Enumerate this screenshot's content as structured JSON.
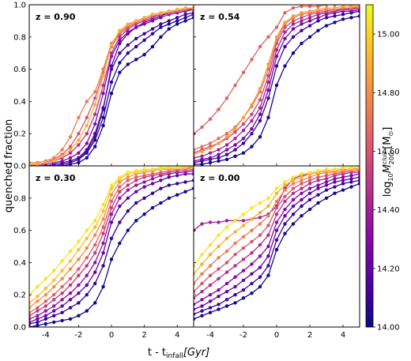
{
  "figure": {
    "ylabel": "quenched fraction",
    "xlabel_main": "t - t",
    "xlabel_sub": "infall",
    "xlabel_unit": "[Gyr]",
    "colorbar_label_prefix": "log",
    "colorbar_label_sub10": "10",
    "colorbar_label_M": "M",
    "colorbar_label_sup": "clus",
    "colorbar_label_sub200": "200",
    "colorbar_label_unit": " [M",
    "colorbar_label_unit_end": "]",
    "colorbar_label_sun": "⊙"
  },
  "colorbar": {
    "colormap": "plasma",
    "range": [
      14.0,
      15.1
    ],
    "ticks": [
      "14.00",
      "14.20",
      "14.40",
      "14.60",
      "14.80",
      "15.00"
    ],
    "tick_values": [
      14.0,
      14.2,
      14.4,
      14.6,
      14.8,
      15.0
    ]
  },
  "chart_data": [
    {
      "type": "line",
      "panel": "top-left",
      "label": "z = 0.90",
      "xlim": [
        -5,
        5
      ],
      "ylim": [
        0,
        1
      ],
      "xticks": [
        "-4",
        "-2",
        "0",
        "2",
        "4"
      ],
      "yticks": [
        "0.0",
        "0.2",
        "0.4",
        "0.6",
        "0.8",
        "1.0"
      ],
      "x": [
        -5,
        -4.5,
        -4,
        -3.5,
        -3,
        -2.5,
        -2,
        -1.5,
        -1,
        -0.5,
        0,
        0.5,
        1,
        1.5,
        2,
        2.5,
        3,
        3.5,
        4,
        4.5,
        5
      ],
      "series": [
        {
          "mass": 14.02,
          "values": [
            0.0,
            0.0,
            0.0,
            0.0,
            0.0,
            0.01,
            0.02,
            0.05,
            0.12,
            0.25,
            0.45,
            0.58,
            0.63,
            0.66,
            0.69,
            0.74,
            0.8,
            0.85,
            0.88,
            0.9,
            0.92
          ]
        },
        {
          "mass": 14.05,
          "values": [
            0.0,
            0.0,
            0.0,
            0.0,
            0.01,
            0.02,
            0.04,
            0.08,
            0.16,
            0.3,
            0.52,
            0.64,
            0.7,
            0.74,
            0.78,
            0.82,
            0.86,
            0.88,
            0.9,
            0.92,
            0.94
          ]
        },
        {
          "mass": 14.1,
          "values": [
            0.0,
            0.0,
            0.0,
            0.01,
            0.02,
            0.03,
            0.05,
            0.1,
            0.2,
            0.36,
            0.6,
            0.7,
            0.75,
            0.79,
            0.82,
            0.85,
            0.88,
            0.9,
            0.92,
            0.94,
            0.95
          ]
        },
        {
          "mass": 14.15,
          "values": [
            0.0,
            0.0,
            0.0,
            0.0,
            0.01,
            0.02,
            0.04,
            0.09,
            0.18,
            0.35,
            0.62,
            0.76,
            0.82,
            0.86,
            0.89,
            0.91,
            0.93,
            0.95,
            0.96,
            0.97,
            0.98
          ]
        },
        {
          "mass": 14.3,
          "values": [
            0.01,
            0.01,
            0.01,
            0.02,
            0.03,
            0.05,
            0.08,
            0.14,
            0.26,
            0.45,
            0.68,
            0.78,
            0.83,
            0.86,
            0.88,
            0.9,
            0.92,
            0.94,
            0.95,
            0.96,
            0.97
          ]
        },
        {
          "mass": 14.45,
          "values": [
            0.01,
            0.01,
            0.02,
            0.03,
            0.05,
            0.08,
            0.13,
            0.2,
            0.32,
            0.5,
            0.7,
            0.8,
            0.85,
            0.88,
            0.9,
            0.92,
            0.94,
            0.95,
            0.96,
            0.97,
            0.97
          ]
        },
        {
          "mass": 14.6,
          "values": [
            0.01,
            0.01,
            0.02,
            0.04,
            0.07,
            0.12,
            0.2,
            0.3,
            0.42,
            0.58,
            0.74,
            0.82,
            0.86,
            0.89,
            0.91,
            0.93,
            0.94,
            0.95,
            0.96,
            0.97,
            0.98
          ]
        },
        {
          "mass": 14.75,
          "values": [
            0.02,
            0.02,
            0.03,
            0.05,
            0.1,
            0.18,
            0.3,
            0.4,
            0.46,
            0.6,
            0.76,
            0.83,
            0.87,
            0.9,
            0.92,
            0.94,
            0.95,
            0.96,
            0.97,
            0.98,
            0.98
          ]
        },
        {
          "mass": 14.9,
          "values": [
            0.01,
            0.01,
            0.02,
            0.03,
            0.06,
            0.1,
            0.16,
            0.25,
            0.38,
            0.56,
            0.75,
            0.84,
            0.88,
            0.9,
            0.92,
            0.94,
            0.95,
            0.96,
            0.97,
            0.98,
            0.98
          ]
        }
      ]
    },
    {
      "type": "line",
      "panel": "top-right",
      "label": "z = 0.54",
      "xlim": [
        -5,
        5
      ],
      "ylim": [
        0,
        1
      ],
      "xticks": [
        "-4",
        "-2",
        "0",
        "2",
        "4"
      ],
      "yticks": [
        "0.0",
        "0.2",
        "0.4",
        "0.6",
        "0.8",
        "1.0"
      ],
      "x": [
        -5,
        -4.5,
        -4,
        -3.5,
        -3,
        -2.5,
        -2,
        -1.5,
        -1,
        -0.5,
        0,
        0.5,
        1,
        1.5,
        2,
        2.5,
        3,
        3.5,
        4,
        4.5,
        5
      ],
      "series": [
        {
          "mass": 14.02,
          "values": [
            0.01,
            0.01,
            0.02,
            0.03,
            0.04,
            0.06,
            0.08,
            0.12,
            0.18,
            0.3,
            0.5,
            0.62,
            0.7,
            0.76,
            0.8,
            0.84,
            0.87,
            0.89,
            0.91,
            0.92,
            0.93
          ]
        },
        {
          "mass": 14.1,
          "values": [
            0.02,
            0.03,
            0.04,
            0.05,
            0.07,
            0.1,
            0.14,
            0.2,
            0.28,
            0.42,
            0.62,
            0.74,
            0.8,
            0.84,
            0.87,
            0.9,
            0.92,
            0.93,
            0.94,
            0.95,
            0.96
          ]
        },
        {
          "mass": 14.25,
          "values": [
            0.03,
            0.04,
            0.05,
            0.07,
            0.1,
            0.13,
            0.17,
            0.23,
            0.32,
            0.47,
            0.68,
            0.79,
            0.85,
            0.88,
            0.9,
            0.92,
            0.94,
            0.95,
            0.96,
            0.96,
            0.97
          ]
        },
        {
          "mass": 14.4,
          "values": [
            0.05,
            0.06,
            0.08,
            0.1,
            0.13,
            0.17,
            0.22,
            0.28,
            0.36,
            0.52,
            0.72,
            0.83,
            0.88,
            0.9,
            0.92,
            0.94,
            0.95,
            0.96,
            0.97,
            0.97,
            0.98
          ]
        },
        {
          "mass": 14.55,
          "values": [
            0.08,
            0.1,
            0.12,
            0.14,
            0.17,
            0.21,
            0.26,
            0.32,
            0.41,
            0.56,
            0.76,
            0.86,
            0.9,
            0.92,
            0.94,
            0.95,
            0.96,
            0.97,
            0.97,
            0.98,
            0.98
          ]
        },
        {
          "mass": 14.7,
          "values": [
            0.1,
            0.12,
            0.14,
            0.17,
            0.2,
            0.24,
            0.3,
            0.37,
            0.46,
            0.6,
            0.78,
            0.88,
            0.92,
            0.94,
            0.95,
            0.96,
            0.97,
            0.97,
            0.98,
            0.98,
            0.99
          ]
        },
        {
          "mass": 14.85,
          "values": [
            0.07,
            0.09,
            0.11,
            0.14,
            0.18,
            0.23,
            0.3,
            0.38,
            0.48,
            0.63,
            0.8,
            0.89,
            0.93,
            0.95,
            0.96,
            0.97,
            0.98,
            0.98,
            0.99,
            0.99,
            0.99
          ]
        },
        {
          "mass": 14.65,
          "values": [
            0.2,
            0.24,
            0.29,
            0.35,
            0.42,
            0.5,
            0.58,
            0.66,
            0.74,
            0.8,
            0.86,
            0.95,
            0.98,
            0.99,
            0.99,
            0.99,
            1.0,
            1.0,
            1.0,
            1.0,
            1.0
          ]
        }
      ]
    },
    {
      "type": "line",
      "panel": "bottom-left",
      "label": "z = 0.30",
      "xlim": [
        -5,
        5
      ],
      "ylim": [
        0,
        1
      ],
      "xticks": [
        "-4",
        "-2",
        "0",
        "2",
        "4"
      ],
      "yticks": [
        "0.0",
        "0.2",
        "0.4",
        "0.6",
        "0.8"
      ],
      "x": [
        -5,
        -4.5,
        -4,
        -3.5,
        -3,
        -2.5,
        -2,
        -1.5,
        -1,
        -0.5,
        0,
        0.5,
        1,
        1.5,
        2,
        2.5,
        3,
        3.5,
        4,
        4.5,
        5
      ],
      "series": [
        {
          "mass": 14.02,
          "values": [
            0.0,
            0.01,
            0.02,
            0.03,
            0.04,
            0.05,
            0.07,
            0.1,
            0.15,
            0.25,
            0.42,
            0.52,
            0.6,
            0.66,
            0.7,
            0.74,
            0.77,
            0.8,
            0.82,
            0.84,
            0.86
          ]
        },
        {
          "mass": 14.08,
          "values": [
            0.02,
            0.03,
            0.05,
            0.07,
            0.09,
            0.12,
            0.15,
            0.2,
            0.27,
            0.38,
            0.55,
            0.65,
            0.72,
            0.77,
            0.8,
            0.83,
            0.86,
            0.88,
            0.89,
            0.9,
            0.91
          ]
        },
        {
          "mass": 14.2,
          "values": [
            0.03,
            0.05,
            0.07,
            0.1,
            0.13,
            0.17,
            0.21,
            0.26,
            0.34,
            0.46,
            0.65,
            0.75,
            0.8,
            0.84,
            0.87,
            0.89,
            0.91,
            0.93,
            0.94,
            0.95,
            0.95
          ]
        },
        {
          "mass": 14.35,
          "values": [
            0.05,
            0.07,
            0.1,
            0.13,
            0.17,
            0.21,
            0.26,
            0.32,
            0.4,
            0.52,
            0.7,
            0.8,
            0.85,
            0.88,
            0.9,
            0.92,
            0.94,
            0.95,
            0.96,
            0.96,
            0.97
          ]
        },
        {
          "mass": 14.5,
          "values": [
            0.07,
            0.1,
            0.13,
            0.17,
            0.21,
            0.26,
            0.32,
            0.38,
            0.46,
            0.58,
            0.74,
            0.84,
            0.88,
            0.91,
            0.93,
            0.94,
            0.95,
            0.96,
            0.97,
            0.97,
            0.98
          ]
        },
        {
          "mass": 14.65,
          "values": [
            0.09,
            0.12,
            0.16,
            0.2,
            0.25,
            0.3,
            0.36,
            0.43,
            0.51,
            0.62,
            0.78,
            0.87,
            0.91,
            0.93,
            0.94,
            0.95,
            0.96,
            0.97,
            0.98,
            0.98,
            0.99
          ]
        },
        {
          "mass": 14.8,
          "values": [
            0.12,
            0.16,
            0.2,
            0.25,
            0.3,
            0.36,
            0.42,
            0.49,
            0.57,
            0.67,
            0.82,
            0.9,
            0.93,
            0.95,
            0.96,
            0.97,
            0.98,
            0.98,
            0.99,
            0.99,
            0.99
          ]
        },
        {
          "mass": 14.95,
          "values": [
            0.15,
            0.19,
            0.24,
            0.29,
            0.35,
            0.41,
            0.48,
            0.55,
            0.62,
            0.72,
            0.86,
            0.92,
            0.95,
            0.96,
            0.97,
            0.98,
            0.98,
            0.99,
            0.99,
            0.99,
            1.0
          ]
        },
        {
          "mass": 15.05,
          "values": [
            0.2,
            0.25,
            0.3,
            0.35,
            0.41,
            0.47,
            0.53,
            0.6,
            0.66,
            0.76,
            0.88,
            0.93,
            0.96,
            0.97,
            0.98,
            0.98,
            0.99,
            0.99,
            0.99,
            1.0,
            1.0
          ]
        }
      ]
    },
    {
      "type": "line",
      "panel": "bottom-right",
      "label": "z = 0.00",
      "xlim": [
        -5,
        5
      ],
      "ylim": [
        0,
        1
      ],
      "xticks": [
        "-4",
        "-2",
        "0",
        "2",
        "4"
      ],
      "yticks": [
        "0.0",
        "0.2",
        "0.4",
        "0.6",
        "0.8"
      ],
      "x": [
        -5,
        -4.5,
        -4,
        -3.5,
        -3,
        -2.5,
        -2,
        -1.5,
        -1,
        -0.5,
        0,
        0.5,
        1,
        1.5,
        2,
        2.5,
        3,
        3.5,
        4,
        4.5,
        5
      ],
      "series": [
        {
          "mass": 14.02,
          "values": [
            0.05,
            0.07,
            0.09,
            0.11,
            0.13,
            0.15,
            0.18,
            0.21,
            0.25,
            0.32,
            0.48,
            0.58,
            0.64,
            0.69,
            0.73,
            0.77,
            0.8,
            0.83,
            0.85,
            0.87,
            0.89
          ]
        },
        {
          "mass": 14.1,
          "values": [
            0.08,
            0.1,
            0.12,
            0.14,
            0.17,
            0.2,
            0.23,
            0.27,
            0.31,
            0.38,
            0.54,
            0.64,
            0.7,
            0.75,
            0.79,
            0.82,
            0.85,
            0.87,
            0.89,
            0.9,
            0.91
          ]
        },
        {
          "mass": 14.2,
          "values": [
            0.11,
            0.13,
            0.16,
            0.19,
            0.22,
            0.25,
            0.29,
            0.33,
            0.37,
            0.44,
            0.6,
            0.69,
            0.75,
            0.79,
            0.83,
            0.86,
            0.88,
            0.9,
            0.91,
            0.92,
            0.93
          ]
        },
        {
          "mass": 14.3,
          "values": [
            0.14,
            0.17,
            0.2,
            0.23,
            0.27,
            0.31,
            0.35,
            0.39,
            0.44,
            0.5,
            0.65,
            0.73,
            0.79,
            0.83,
            0.86,
            0.88,
            0.9,
            0.92,
            0.93,
            0.94,
            0.95
          ]
        },
        {
          "mass": 14.45,
          "values": [
            0.18,
            0.22,
            0.26,
            0.3,
            0.34,
            0.38,
            0.42,
            0.46,
            0.51,
            0.57,
            0.7,
            0.78,
            0.83,
            0.86,
            0.89,
            0.91,
            0.92,
            0.94,
            0.95,
            0.96,
            0.96
          ]
        },
        {
          "mass": 14.6,
          "values": [
            0.22,
            0.27,
            0.32,
            0.36,
            0.4,
            0.45,
            0.49,
            0.53,
            0.57,
            0.63,
            0.74,
            0.81,
            0.86,
            0.89,
            0.91,
            0.93,
            0.94,
            0.95,
            0.96,
            0.97,
            0.97
          ]
        },
        {
          "mass": 14.75,
          "values": [
            0.27,
            0.33,
            0.38,
            0.43,
            0.47,
            0.52,
            0.56,
            0.6,
            0.64,
            0.69,
            0.78,
            0.85,
            0.89,
            0.91,
            0.93,
            0.95,
            0.96,
            0.96,
            0.97,
            0.98,
            0.98
          ]
        },
        {
          "mass": 14.9,
          "values": [
            0.33,
            0.39,
            0.45,
            0.5,
            0.55,
            0.59,
            0.63,
            0.67,
            0.71,
            0.75,
            0.83,
            0.88,
            0.91,
            0.93,
            0.95,
            0.96,
            0.97,
            0.97,
            0.98,
            0.98,
            0.99
          ]
        },
        {
          "mass": 15.05,
          "values": [
            0.38,
            0.45,
            0.51,
            0.57,
            0.62,
            0.66,
            0.7,
            0.74,
            0.77,
            0.8,
            0.86,
            0.9,
            0.93,
            0.95,
            0.96,
            0.97,
            0.98,
            0.98,
            0.99,
            0.99,
            0.99
          ]
        },
        {
          "mass": 14.4,
          "values": [
            0.6,
            0.64,
            0.65,
            0.65,
            0.66,
            0.66,
            0.66,
            0.67,
            0.68,
            0.7,
            0.75,
            0.86,
            0.92,
            0.94,
            0.95,
            0.96,
            0.97,
            0.97,
            0.98,
            0.98,
            0.99
          ]
        }
      ]
    }
  ]
}
